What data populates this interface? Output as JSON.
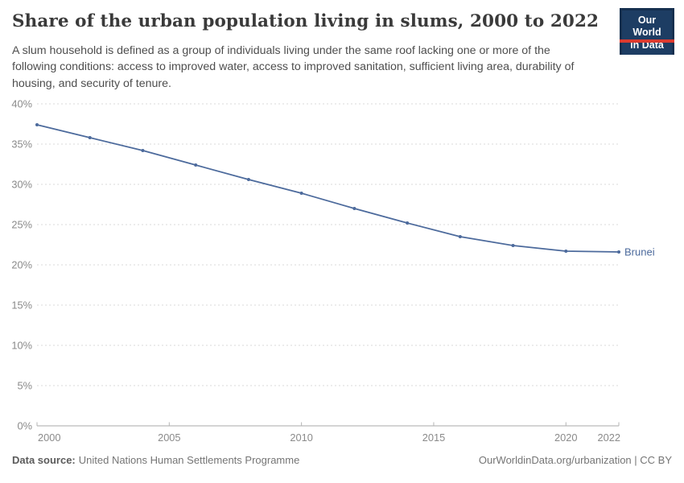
{
  "header": {
    "title": "Share of the urban population living in slums, 2000 to 2022",
    "subtitle": "A slum household is defined as a group of individuals living under the same roof lacking one or more of the following conditions: access to improved water, access to improved sanitation, sufficient living area, durability of housing, and security of tenure.",
    "logo": {
      "line1": "Our World",
      "line2": "in Data"
    }
  },
  "chart_data": {
    "type": "line",
    "title": "Share of the urban population living in slums, 2000 to 2022",
    "x": [
      2000,
      2002,
      2004,
      2006,
      2008,
      2010,
      2012,
      2014,
      2016,
      2018,
      2020,
      2022
    ],
    "series": [
      {
        "name": "Brunei",
        "color": "#4c6a9c",
        "values": [
          37.4,
          35.8,
          34.2,
          32.4,
          30.6,
          28.9,
          27.0,
          25.2,
          23.5,
          22.4,
          21.7,
          21.6
        ]
      }
    ],
    "x_ticks": [
      2000,
      2005,
      2010,
      2015,
      2020,
      2022
    ],
    "y_ticks": [
      0,
      5,
      10,
      15,
      20,
      25,
      30,
      35,
      40
    ],
    "y_tick_suffix": "%",
    "xlim": [
      2000,
      2022
    ],
    "ylim": [
      0,
      40
    ],
    "grid": "horizontal-dashed",
    "legend_position": "line-end-label"
  },
  "footer": {
    "source_label": "Data source:",
    "source_value": "United Nations Human Settlements Programme",
    "attribution": "OurWorldinData.org/urbanization | CC BY"
  },
  "colors": {
    "line": "#4c6a9c",
    "logo_bg": "#1d3d63",
    "logo_stripe": "#dc3a2f",
    "grid_line": "#d9d9d9",
    "axis_line": "#a8a8a8",
    "tick_label": "#8a8a8a",
    "title_text": "#3a3a3a",
    "subtitle_text": "#4e4e4e"
  }
}
